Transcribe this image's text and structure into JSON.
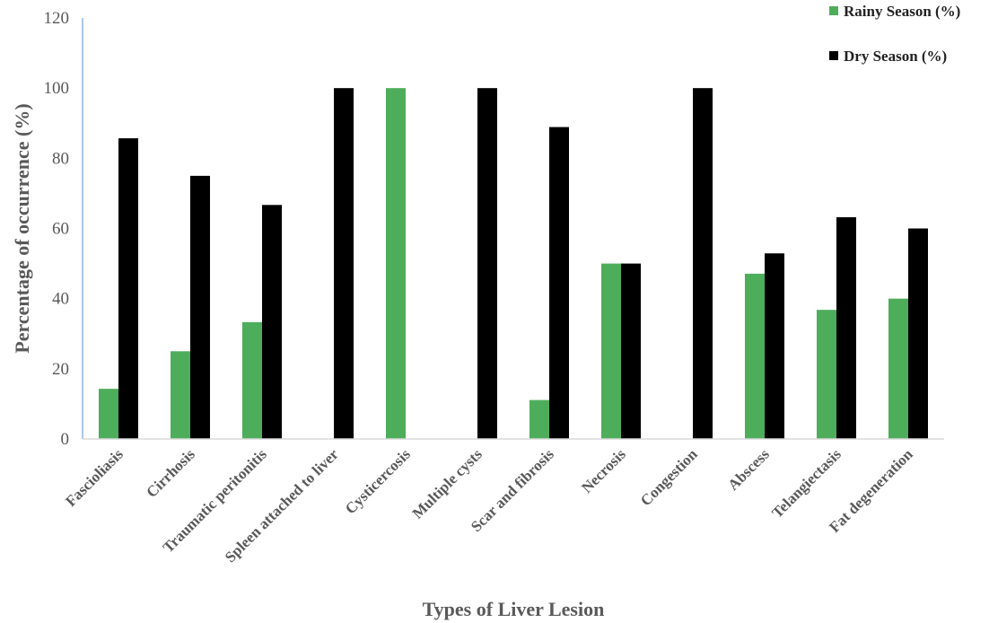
{
  "chart_data": {
    "type": "bar",
    "title": "",
    "xlabel": "Types of Liver Lesion",
    "ylabel": "Percentage of occurrence (%)",
    "ylim": [
      0,
      120
    ],
    "yticks": [
      0,
      20,
      40,
      60,
      80,
      100,
      120
    ],
    "grid": false,
    "legend_position": "top-right",
    "categories": [
      "Fascioliasis",
      "Cirrhosis",
      "Traumatic peritonitis",
      "Spleen attached to liver",
      "Cysticercosis",
      "Multiple cysts",
      "Scar and fibrosis",
      "Necrosis",
      "Congestion",
      "Abscess",
      "Telangiectasis",
      "Fat degeneration"
    ],
    "series": [
      {
        "name": "Rainy Season (%)",
        "color": "#4ead5b",
        "values": [
          14.3,
          25,
          33.3,
          0,
          100,
          0,
          11.1,
          50,
          0,
          47.1,
          36.8,
          40
        ]
      },
      {
        "name": "Dry Season (%)",
        "color": "#000000",
        "values": [
          85.7,
          75,
          66.7,
          100,
          0,
          100,
          88.9,
          50,
          100,
          52.9,
          63.2,
          60
        ]
      }
    ]
  }
}
